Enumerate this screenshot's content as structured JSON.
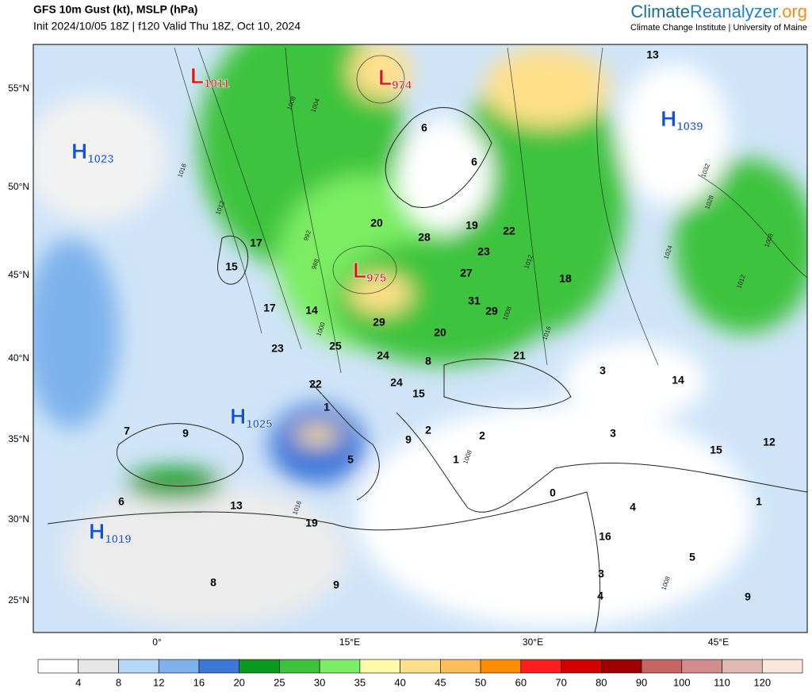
{
  "header": {
    "title": "GFS 10m Gust (kt), MSLP (hPa)",
    "subtitle": "Init 2024/10/05 18Z | f120 Valid Thu 18Z, Oct 10, 2024",
    "brand": [
      "Climate",
      "Reanalyzer",
      ".org"
    ],
    "brand_colors": [
      "#1a6e8e",
      "#1f7fd0",
      "#f08c1e"
    ],
    "brand_sub": "Climate Change Institute | University of Maine"
  },
  "map": {
    "lat_labels": [
      "55°N",
      "50°N",
      "45°N",
      "40°N",
      "35°N",
      "30°N",
      "25°N"
    ],
    "lon_labels": [
      "0°",
      "15°E",
      "30°E",
      "45°E"
    ],
    "pressure_systems": [
      {
        "letter": "L",
        "value": "1011"
      },
      {
        "letter": "L",
        "value": "974"
      },
      {
        "letter": "H",
        "value": "1039"
      },
      {
        "letter": "H",
        "value": "1023"
      },
      {
        "letter": "L",
        "value": "975"
      },
      {
        "letter": "H",
        "value": "1025"
      },
      {
        "letter": "H",
        "value": "1019"
      }
    ],
    "gust_labels": [
      13,
      6,
      6,
      20,
      28,
      19,
      22,
      17,
      15,
      23,
      27,
      18,
      17,
      14,
      31,
      29,
      29,
      20,
      23,
      25,
      24,
      8,
      21,
      3,
      14,
      22,
      24,
      15,
      1,
      9,
      7,
      2,
      2,
      9,
      3,
      12,
      15,
      5,
      1,
      0,
      4,
      6,
      13,
      1,
      19,
      16,
      5,
      3,
      8,
      9,
      4,
      9
    ],
    "isobar_labels": [
      "1008",
      "1004",
      "1016",
      "1012",
      "992",
      "988",
      "1000",
      "1024",
      "1028",
      "1032",
      "1008",
      "1012",
      "1012",
      "1008",
      "1016",
      "1008",
      "1016",
      "1008"
    ]
  },
  "colorbar": {
    "labels": [
      4,
      8,
      12,
      16,
      20,
      25,
      30,
      35,
      40,
      45,
      50,
      60,
      70,
      80,
      90,
      100,
      110,
      120
    ],
    "colors": [
      "#ffffff",
      "#e6e6e6",
      "#b4d7f8",
      "#7eb2ec",
      "#3c78d8",
      "#0a9b1e",
      "#3cc33c",
      "#7ced64",
      "#fffaaa",
      "#ffe08a",
      "#ffbe5a",
      "#ff8c00",
      "#ff1e1e",
      "#d20000",
      "#a00000",
      "#c86464",
      "#d28c8c",
      "#e0b9b2",
      "#fbe6dc"
    ]
  }
}
